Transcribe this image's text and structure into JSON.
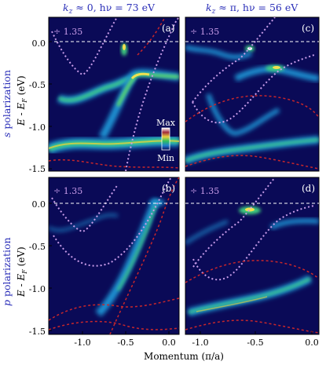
{
  "figure": {
    "column_titles": [
      {
        "kz": "k",
        "kz_sub": "z",
        "rest": " ≈ 0, hν = 73 eV"
      },
      {
        "kz": "k",
        "kz_sub": "z",
        "rest": " ≈ π, hν = 56 eV"
      }
    ],
    "row_labels": [
      {
        "letter": "s",
        "rest": " polarization"
      },
      {
        "letter": "p",
        "rest": " polarization"
      }
    ],
    "y_axis_label": "E - E",
    "y_axis_sub": "F",
    "y_axis_unit": " (eV)",
    "x_axis_label": "Momentum (π/a)",
    "y_ticks": [
      "0.0",
      "-0.5",
      "-1.0",
      "-1.5"
    ],
    "x_ticks": [
      "-1.0",
      "-0.5",
      "0.0"
    ],
    "colorbar": {
      "max": "Max",
      "min": "Min"
    },
    "panels": [
      {
        "label": "(a)",
        "divisor": "÷ 1.35"
      },
      {
        "label": "(c)",
        "divisor": "÷ 1.35"
      },
      {
        "label": "(b)",
        "divisor": "÷ 1.35"
      },
      {
        "label": "(d)",
        "divisor": "÷ 1.35"
      }
    ],
    "colors": {
      "background": "#0a0a57",
      "band_dashed_violet": "#c79be8",
      "band_dashed_red": "#c8262b",
      "fermi_level": "#ffffff",
      "title_blue": "#2b2fb8"
    }
  }
}
